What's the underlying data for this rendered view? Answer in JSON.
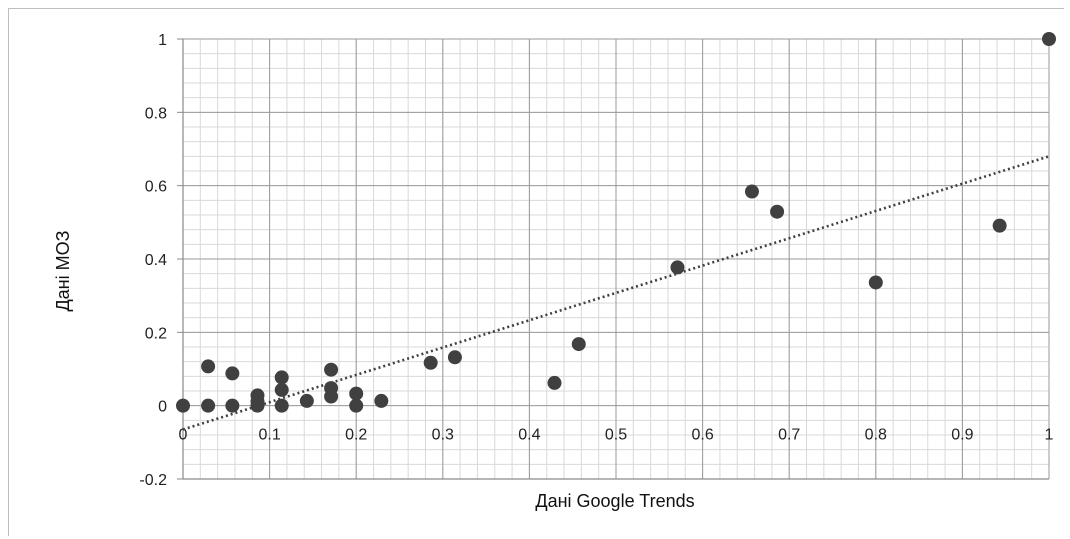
{
  "chart_data": {
    "type": "scatter",
    "title": "",
    "xlabel": "Дані Google Trends",
    "ylabel": "Дані МОЗ",
    "xlim": [
      0,
      1
    ],
    "ylim": [
      -0.2,
      1
    ],
    "x_ticks": [
      0,
      0.1,
      0.2,
      0.3,
      0.4,
      0.5,
      0.6,
      0.7,
      0.8,
      0.9,
      1
    ],
    "x_tick_labels": [
      "0",
      "0.1",
      "0.2",
      "0.3",
      "0.4",
      "0.5",
      "0.6",
      "0.7",
      "0.8",
      "0.9",
      "1"
    ],
    "y_ticks": [
      -0.2,
      0,
      0.2,
      0.4,
      0.6,
      0.8,
      1
    ],
    "y_tick_labels": [
      "-0.2",
      "0",
      "0.2",
      "0.4",
      "0.6",
      "0.8",
      "1"
    ],
    "grid": true,
    "minor_grid": true,
    "marker_color": "#404040",
    "trendline": {
      "style": "dotted",
      "color": "#404040",
      "x": [
        0,
        1
      ],
      "y": [
        -0.065,
        0.68
      ]
    },
    "series": [
      {
        "points": [
          [
            0,
            0
          ],
          [
            0.029,
            0
          ],
          [
            0.057,
            0
          ],
          [
            0.086,
            0
          ],
          [
            0.114,
            0
          ],
          [
            0.2,
            0
          ],
          [
            0.029,
            0.107
          ],
          [
            0.057,
            0.088
          ],
          [
            0.086,
            0.028
          ],
          [
            0.086,
            0.012
          ],
          [
            0.114,
            0.077
          ],
          [
            0.114,
            0.043
          ],
          [
            0.143,
            0.013
          ],
          [
            0.171,
            0.098
          ],
          [
            0.171,
            0.048
          ],
          [
            0.171,
            0.025
          ],
          [
            0.2,
            0.033
          ],
          [
            0.229,
            0.013
          ],
          [
            0.286,
            0.117
          ],
          [
            0.314,
            0.132
          ],
          [
            0.429,
            0.062
          ],
          [
            0.457,
            0.168
          ],
          [
            0.571,
            0.377
          ],
          [
            0.657,
            0.584
          ],
          [
            0.686,
            0.529
          ],
          [
            0.8,
            0.336
          ],
          [
            0.943,
            0.491
          ],
          [
            1,
            1
          ]
        ]
      }
    ]
  }
}
